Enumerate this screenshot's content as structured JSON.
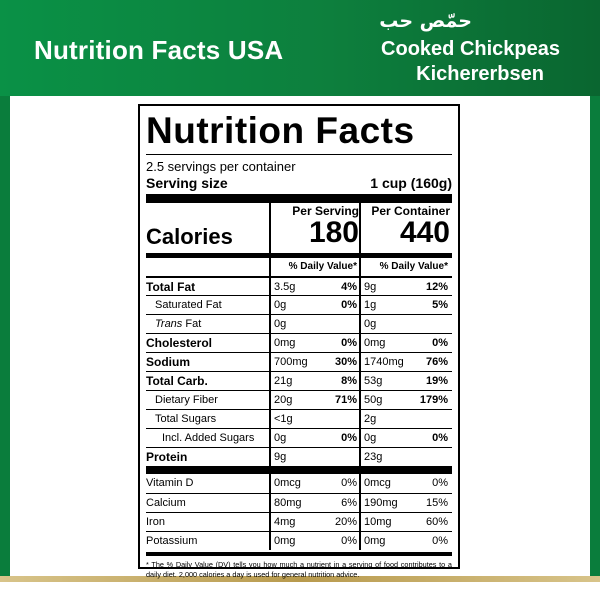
{
  "banner": {
    "title": "Nutrition Facts USA",
    "arabic": "حمّص حب",
    "english": "Cooked Chickpeas",
    "german": "Kichererbsen"
  },
  "label": {
    "title": "Nutrition Facts",
    "servings": "2.5 servings per container",
    "serving_size_label": "Serving size",
    "serving_size_value": "1 cup (160g)",
    "calories_label": "Calories",
    "per_serving_label": "Per Serving",
    "per_container_label": "Per Container",
    "calories_serving": "180",
    "calories_container": "440",
    "dv_header": "% Daily Value*",
    "nutrients": [
      {
        "name": "Total Fat",
        "s_amt": "3.5g",
        "s_pct": "4%",
        "c_amt": "9g",
        "c_pct": "12%"
      },
      {
        "name": "Saturated Fat",
        "s_amt": "0g",
        "s_pct": "0%",
        "c_amt": "1g",
        "c_pct": "5%"
      },
      {
        "name_italic": "Trans",
        "name_rest": " Fat",
        "s_amt": "0g",
        "s_pct": "",
        "c_amt": "0g",
        "c_pct": ""
      },
      {
        "name": "Cholesterol",
        "s_amt": "0mg",
        "s_pct": "0%",
        "c_amt": "0mg",
        "c_pct": "0%"
      },
      {
        "name": "Sodium",
        "s_amt": "700mg",
        "s_pct": "30%",
        "c_amt": "1740mg",
        "c_pct": "76%"
      },
      {
        "name": "Total Carb.",
        "s_amt": "21g",
        "s_pct": "8%",
        "c_amt": "53g",
        "c_pct": "19%"
      },
      {
        "name": "Dietary Fiber",
        "s_amt": "20g",
        "s_pct": "71%",
        "c_amt": "50g",
        "c_pct": "179%"
      },
      {
        "name": "Total Sugars",
        "s_amt": "<1g",
        "s_pct": "",
        "c_amt": "2g",
        "c_pct": ""
      },
      {
        "name": "Incl. Added Sugars",
        "s_amt": "0g",
        "s_pct": "0%",
        "c_amt": "0g",
        "c_pct": "0%"
      },
      {
        "name": "Protein",
        "s_amt": "9g",
        "s_pct": "",
        "c_amt": "23g",
        "c_pct": ""
      }
    ],
    "vitamins": [
      {
        "name": "Vitamin D",
        "s_amt": "0mcg",
        "s_pct": "0%",
        "c_amt": "0mcg",
        "c_pct": "0%"
      },
      {
        "name": "Calcium",
        "s_amt": "80mg",
        "s_pct": "6%",
        "c_amt": "190mg",
        "c_pct": "15%"
      },
      {
        "name": "Iron",
        "s_amt": "4mg",
        "s_pct": "20%",
        "c_amt": "10mg",
        "c_pct": "60%"
      },
      {
        "name": "Potassium",
        "s_amt": "0mg",
        "s_pct": "0%",
        "c_amt": "0mg",
        "c_pct": "0%"
      }
    ],
    "footnote": "* The % Daily Value (DV) tells you how much a nutrient in a serving of food contributes to a daily diet. 2,000 calories a day is used for general nutrition advice."
  },
  "colors": {
    "banner": "#0d7f3d",
    "frame": "#0a7d3c",
    "gold_rule": "#b89a4d"
  }
}
